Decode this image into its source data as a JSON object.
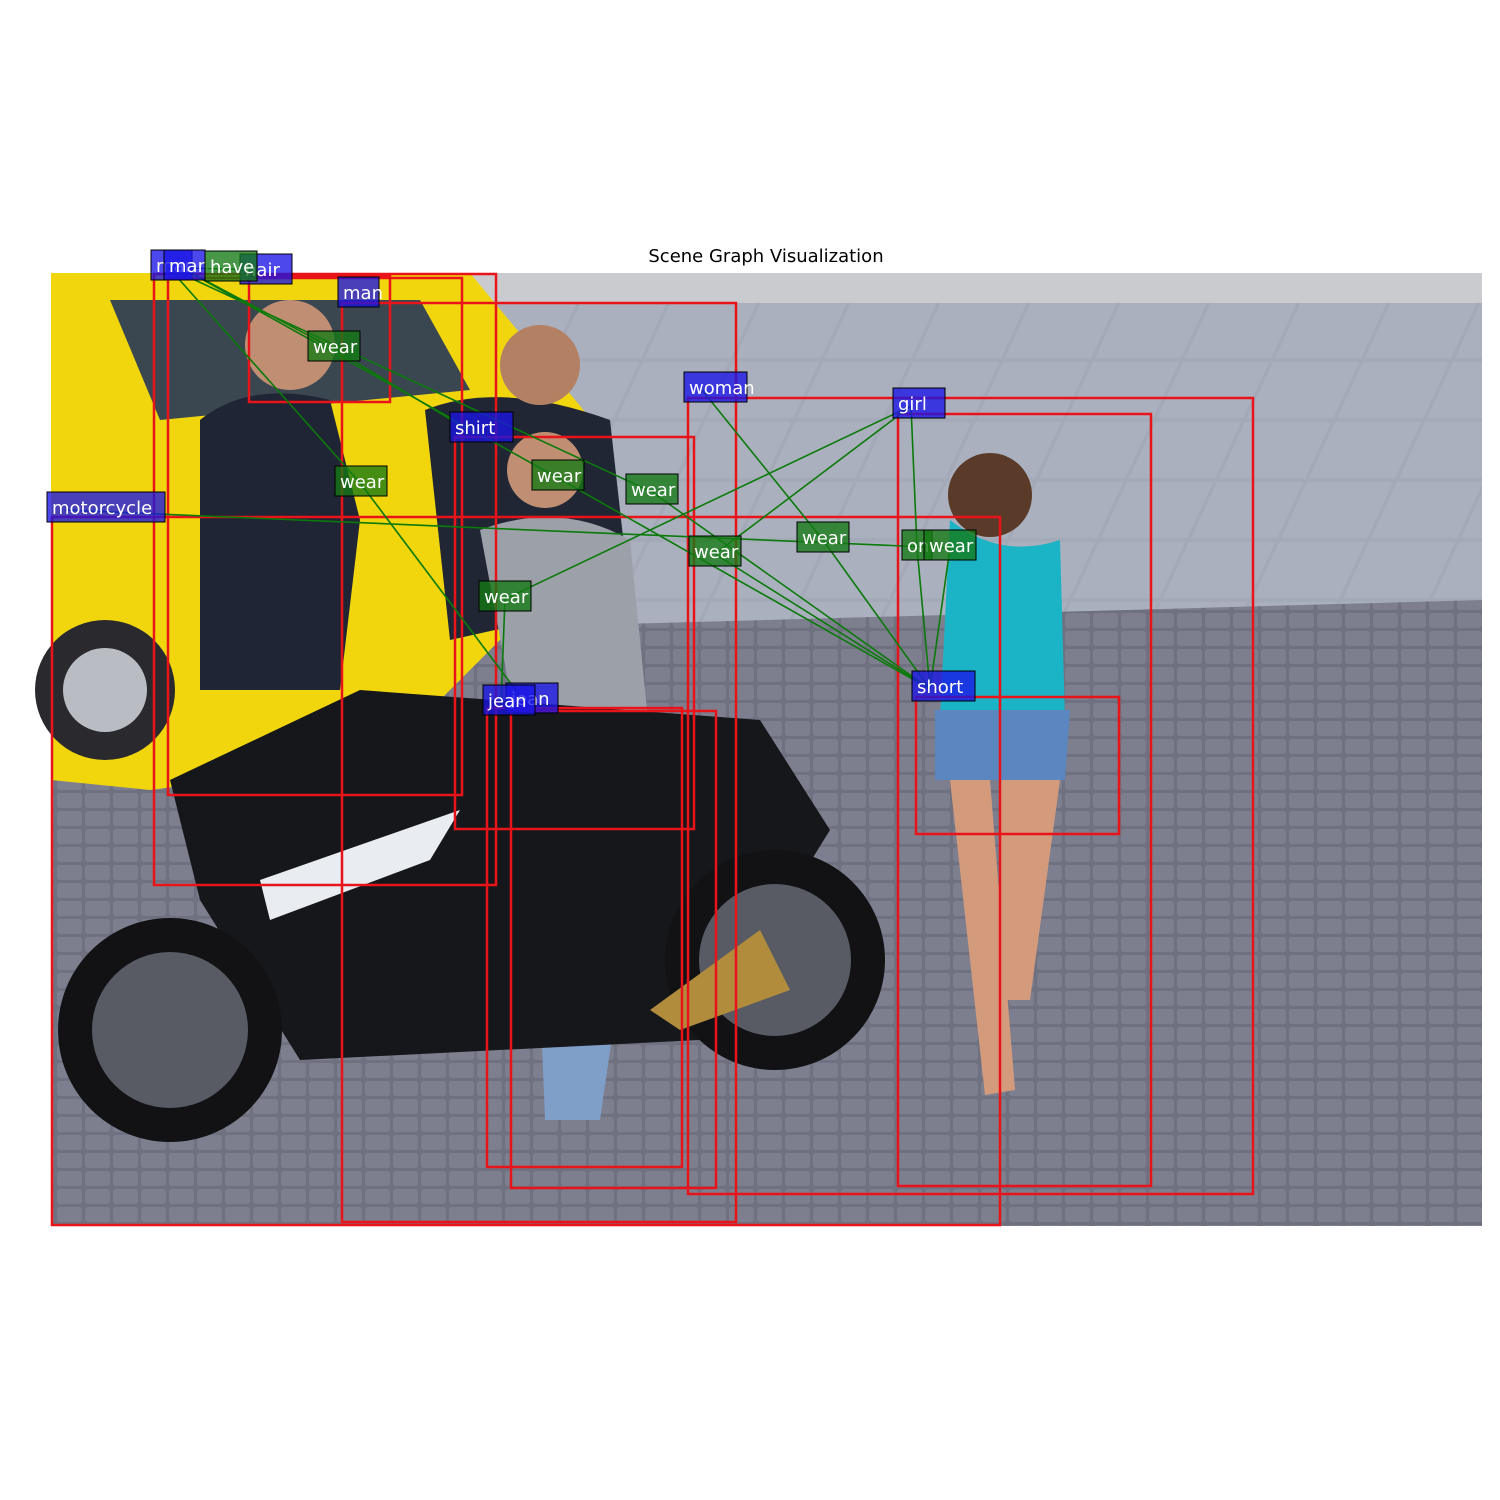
{
  "title": "Scene Graph Visualization",
  "colors": {
    "box": "#e8141a",
    "object_label": "#1a14e6",
    "relation_label": "#157a15",
    "edge": "#0b7a0b"
  },
  "objects": [
    {
      "id": "o1",
      "label": "man"
    },
    {
      "id": "o2",
      "label": "man"
    },
    {
      "id": "o3",
      "label": "hair"
    },
    {
      "id": "o4",
      "label": "man"
    },
    {
      "id": "o5",
      "label": "woman"
    },
    {
      "id": "o6",
      "label": "girl"
    },
    {
      "id": "o7",
      "label": "shirt"
    },
    {
      "id": "o8",
      "label": "motorcycle"
    },
    {
      "id": "o9",
      "label": "jean"
    },
    {
      "id": "o10",
      "label": "jean"
    },
    {
      "id": "o11",
      "label": "short"
    }
  ],
  "relations": [
    {
      "id": "r1",
      "label": "have",
      "subject": "o2",
      "object": "o3"
    },
    {
      "id": "r2",
      "label": "wear",
      "subject": "o2",
      "object": "o7"
    },
    {
      "id": "r3",
      "label": "wear",
      "subject": "o1",
      "object": "o9"
    },
    {
      "id": "r4",
      "label": "wear",
      "subject": "o2",
      "object": "o11"
    },
    {
      "id": "r5",
      "label": "wear",
      "subject": "o1",
      "object": "o11"
    },
    {
      "id": "r6",
      "label": "wear",
      "subject": "o6",
      "object": "o10"
    },
    {
      "id": "r7",
      "label": "wear",
      "subject": "o5",
      "object": "o11"
    },
    {
      "id": "r8",
      "label": "wear",
      "subject": "o6",
      "object": "o11"
    },
    {
      "id": "r9",
      "label": "on",
      "subject": "o6",
      "object": "o11"
    },
    {
      "id": "r10",
      "label": "wear",
      "subject": "o8",
      "object": "o11"
    }
  ]
}
